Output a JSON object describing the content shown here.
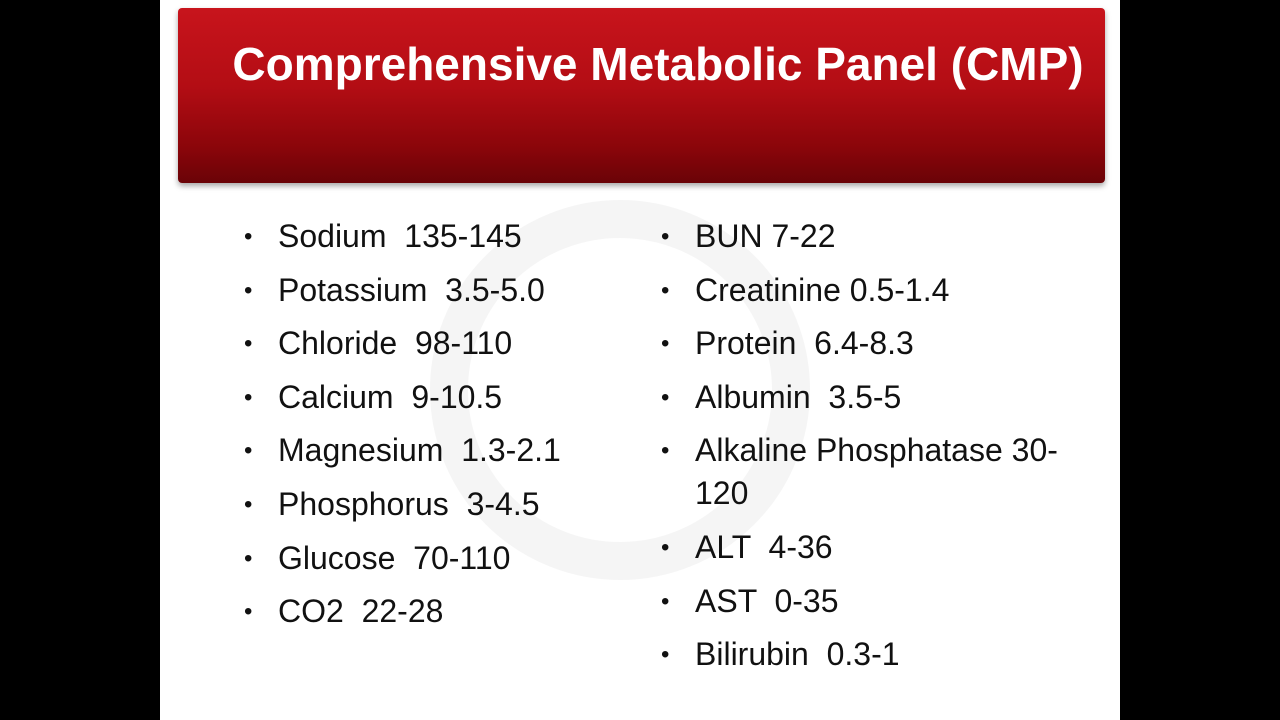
{
  "slide": {
    "title": "Comprehensive Metabolic Panel (CMP)",
    "left_list": [
      "Sodium  135-145",
      "Potassium  3.5-5.0",
      "Chloride  98-110",
      "Calcium  9-10.5",
      "Magnesium  1.3-2.1",
      "Phosphorus  3-4.5",
      "Glucose  70-110",
      "CO2  22-28"
    ],
    "right_list": [
      "BUN 7-22",
      "Creatinine 0.5-1.4",
      "Protein  6.4-8.3",
      "Albumin  3.5-5",
      "Alkaline Phosphatase 30-120",
      "ALT  4-36",
      "AST  0-35",
      "Bilirubin  0.3-1"
    ]
  }
}
